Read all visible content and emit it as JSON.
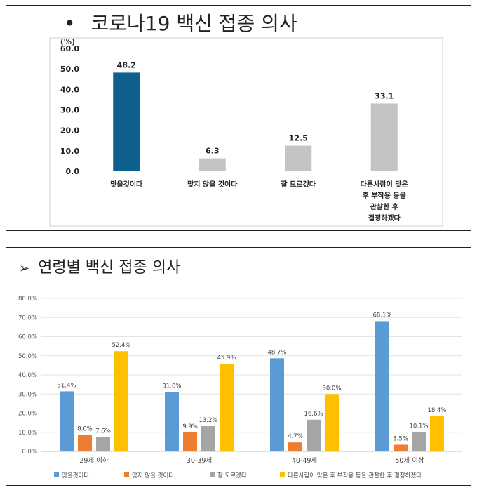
{
  "panel1": {
    "bullet": "•",
    "title": "코로나19 백신 접종 의사"
  },
  "panel2": {
    "arrow": "➢",
    "title": "연령별 백신 접종 의사"
  },
  "chart_data": [
    {
      "type": "bar",
      "title": "코로나19 백신 접종 의사",
      "unit_label": "(%)",
      "ylim": [
        0,
        60
      ],
      "yticks": [
        "0.0",
        "10.0",
        "20.0",
        "30.0",
        "40.0",
        "50.0",
        "60.0"
      ],
      "grid": false,
      "categories": [
        [
          "맞을것이다"
        ],
        [
          "맞지 않을 것이다"
        ],
        [
          "잘 모르겠다"
        ],
        [
          "다른사람이 맞은",
          "후 부작용 등을",
          "관찰한 후",
          "결정하겠다"
        ]
      ],
      "values": [
        48.2,
        6.3,
        12.5,
        33.1
      ],
      "value_labels": [
        "48.2",
        "6.3",
        "12.5",
        "33.1"
      ],
      "colors": [
        "#0f5f8f",
        "#c4c4c4",
        "#c4c4c4",
        "#c4c4c4"
      ]
    },
    {
      "type": "bar",
      "title": "연령별 백신 접종 의사",
      "ylim": [
        0,
        80
      ],
      "yticks": [
        "0.0%",
        "10.0%",
        "20.0%",
        "30.0%",
        "40.0%",
        "50.0%",
        "60.0%",
        "70.0%",
        "80.0%"
      ],
      "grid": true,
      "legend_position": "bottom",
      "categories": [
        "29세 이하",
        "30-39세",
        "40-49세",
        "50세 이상"
      ],
      "series": [
        {
          "name": "맞을것이다",
          "color": "#5b9bd5",
          "values": [
            31.4,
            31.0,
            48.7,
            68.1
          ],
          "labels": [
            "31.4%",
            "31.0%",
            "48.7%",
            "68.1%"
          ]
        },
        {
          "name": "맞지 않을 것이다",
          "color": "#ed7d31",
          "values": [
            8.6,
            9.9,
            4.7,
            3.5
          ],
          "labels": [
            "8.6%",
            "9.9%",
            "4.7%",
            "3.5%"
          ]
        },
        {
          "name": "잘 모르겠다",
          "color": "#a5a5a5",
          "values": [
            7.6,
            13.2,
            16.6,
            10.1
          ],
          "labels": [
            "7.6%",
            "13.2%",
            "16.6%",
            "10.1%"
          ]
        },
        {
          "name": "다른사람이 맞은 후 부작용 등을 관찰한 후 결정하겠다",
          "color": "#ffc000",
          "values": [
            52.4,
            45.9,
            30.0,
            18.4
          ],
          "labels": [
            "52.4%",
            "45.9%",
            "30.0%",
            "18.4%"
          ]
        }
      ]
    }
  ]
}
